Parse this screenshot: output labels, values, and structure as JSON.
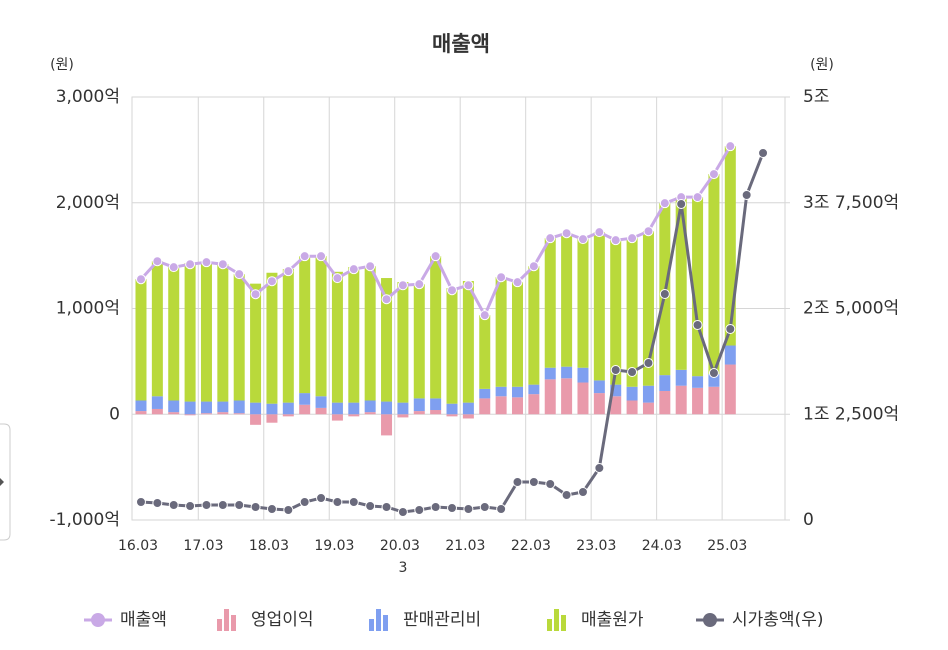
{
  "chart_data": {
    "type": "combo",
    "title": "매출액",
    "y_unit": "(원)",
    "y2_unit": "(원)",
    "x_sublabel": "3",
    "categories": [
      "16.03",
      null,
      null,
      null,
      "17.03",
      null,
      null,
      null,
      "18.03",
      null,
      null,
      null,
      "19.03",
      null,
      null,
      null,
      "20.03",
      null,
      null,
      null,
      "21.03",
      null,
      null,
      null,
      "22.03",
      null,
      null,
      null,
      "23.03",
      null,
      null,
      null,
      "24.03",
      null,
      null,
      null,
      "25.03",
      null,
      null
    ],
    "ylim": [
      -1000,
      3000
    ],
    "yticks": [
      {
        "value": -1000,
        "label": "-1,000억"
      },
      {
        "value": 0,
        "label": "0"
      },
      {
        "value": 1000,
        "label": "1,000억"
      },
      {
        "value": 2000,
        "label": "2,000억"
      },
      {
        "value": 3000,
        "label": "3,000억"
      }
    ],
    "y2lim": [
      0,
      50000
    ],
    "y2ticks": [
      {
        "value": 0,
        "label": "0"
      },
      {
        "value": 12500,
        "label": "1조 2,500억"
      },
      {
        "value": 25000,
        "label": "2조 5,000억"
      },
      {
        "value": 37500,
        "label": "3조 7,500억"
      },
      {
        "value": 50000,
        "label": "5조"
      }
    ],
    "grid": true,
    "series": [
      {
        "name": "매출액",
        "type": "line",
        "color": "#c9a9e6",
        "values": [
          1277,
          1447,
          1391,
          1419,
          1438,
          1419,
          1325,
          1135,
          1258,
          1353,
          1495,
          1495,
          1287,
          1372,
          1400,
          1088,
          1220,
          1230,
          1495,
          1173,
          1220,
          937,
          1296,
          1249,
          1400,
          1665,
          1712,
          1656,
          1722,
          1646,
          1665,
          1731,
          1996,
          2053,
          2053,
          2271,
          2535,
          null,
          null
        ]
      },
      {
        "name": "영업이익",
        "type": "bar",
        "color": "#e99aab",
        "values": [
          30,
          50,
          20,
          -10,
          10,
          20,
          10,
          -100,
          -80,
          -20,
          90,
          60,
          -60,
          -20,
          20,
          -200,
          -30,
          30,
          40,
          -20,
          -40,
          150,
          170,
          160,
          190,
          330,
          340,
          300,
          200,
          170,
          130,
          110,
          220,
          270,
          250,
          260,
          470,
          null,
          null
        ]
      },
      {
        "name": "판매관리비",
        "type": "bar",
        "color": "#7f9ff0",
        "values": [
          100,
          120,
          110,
          120,
          110,
          100,
          120,
          110,
          100,
          110,
          110,
          110,
          110,
          110,
          110,
          120,
          110,
          120,
          110,
          100,
          110,
          90,
          90,
          100,
          90,
          110,
          110,
          140,
          120,
          110,
          130,
          160,
          150,
          150,
          110,
          120,
          180,
          null,
          null
        ]
      },
      {
        "name": "매출원가",
        "type": "bar",
        "color": "#b9d93b",
        "values": [
          1147,
          1277,
          1261,
          1309,
          1318,
          1299,
          1195,
          1125,
          1238,
          1263,
          1295,
          1325,
          1237,
          1282,
          1270,
          1168,
          1140,
          1080,
          1345,
          1093,
          1150,
          697,
          1036,
          989,
          1120,
          1225,
          1262,
          1216,
          1402,
          1366,
          1405,
          1461,
          1626,
          1633,
          1693,
          1891,
          1885,
          null,
          null
        ]
      },
      {
        "name": "시가총액(우)",
        "type": "line",
        "axis": "y2",
        "color": "#6a6a7c",
        "values": [
          2128,
          2010,
          1773,
          1655,
          1773,
          1773,
          1773,
          1537,
          1300,
          1182,
          2128,
          2600,
          2128,
          2128,
          1655,
          1537,
          946,
          1182,
          1537,
          1418,
          1300,
          1537,
          1300,
          4492,
          4492,
          4255,
          2955,
          3310,
          6146,
          17730,
          17494,
          18558,
          26714,
          37352,
          23050,
          17376,
          22577,
          38416,
          43380
        ]
      }
    ]
  }
}
